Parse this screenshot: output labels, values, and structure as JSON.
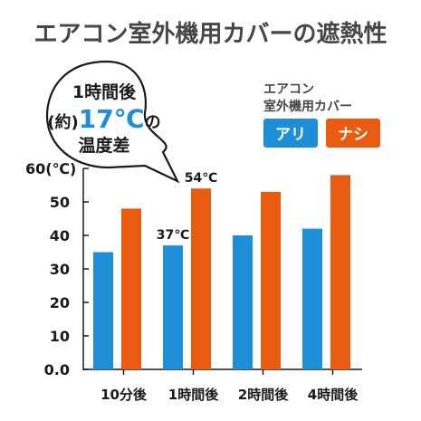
{
  "title": "エアコン室外機用カバーの遮熱性",
  "legend": {
    "heading_line1": "エアコン",
    "heading_line2": "室外機用カバー",
    "with_label": "アリ",
    "without_label": "ナシ"
  },
  "callout": {
    "line1": "1時間後",
    "line2_prefix": "(約)",
    "line2_value": "17℃",
    "line2_suffix": "の",
    "line3": "温度差"
  },
  "chart_data": {
    "type": "bar",
    "title": "エアコン室外機用カバーの遮熱性",
    "ylabel": "(℃)",
    "categories": [
      "10分後",
      "1時間後",
      "2時間後",
      "4時間後"
    ],
    "series": [
      {
        "name": "アリ",
        "color": "#1e8fd6",
        "values": [
          35,
          37,
          40,
          42
        ]
      },
      {
        "name": "ナシ",
        "color": "#ea5b12",
        "values": [
          48,
          54,
          53,
          58
        ]
      }
    ],
    "ylim": [
      0,
      60
    ],
    "y_ticks": [
      0,
      10,
      20,
      30,
      40,
      50,
      60
    ],
    "y_tick_labels": [
      "0.0",
      "10",
      "20",
      "30",
      "40",
      "50",
      "60(℃)"
    ],
    "data_labels": [
      {
        "series": 0,
        "category": 1,
        "text": "37℃"
      },
      {
        "series": 1,
        "category": 1,
        "text": "54℃"
      }
    ],
    "grid": false
  },
  "colors": {
    "blue": "#1e8fd6",
    "orange": "#ea5b12",
    "accent_text": "#1e8fd6",
    "title_text": "#474747"
  }
}
